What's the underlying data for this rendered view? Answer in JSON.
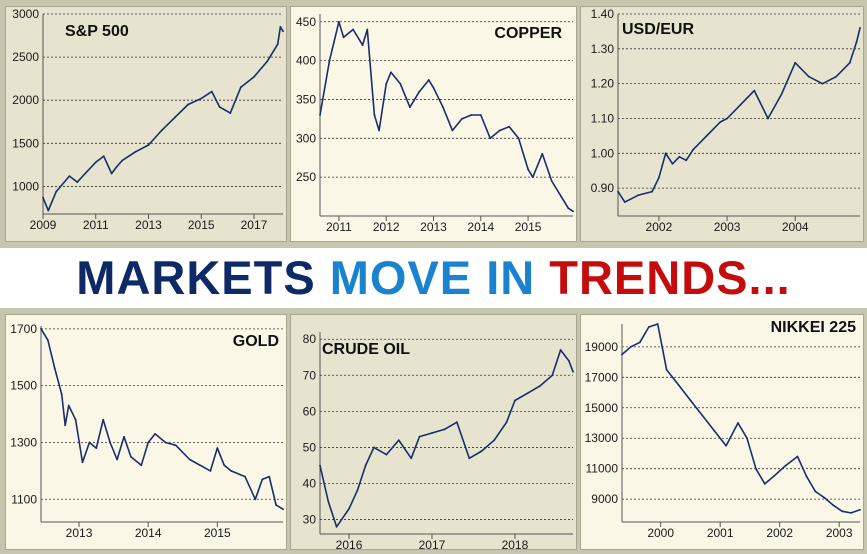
{
  "headline": {
    "word1": "MARKETS",
    "word2": "MOVE IN",
    "word3": "TRENDS..."
  },
  "colors": {
    "frame": "#c8c5ae",
    "panel_light": "#fbf7e6",
    "panel_dark": "#e6e3cf",
    "line": "#1a2d6b",
    "word1": "#0d2a66",
    "word2": "#1a83cf",
    "word3": "#c40c0c"
  },
  "chart_data": [
    {
      "type": "line",
      "title": "S&P 500",
      "x_ticks": [
        "2009",
        "2011",
        "2013",
        "2015",
        "2017"
      ],
      "xlim": [
        2009,
        2018.1
      ],
      "y_ticks": [
        "3000",
        "2500",
        "2000",
        "1500",
        "1000"
      ],
      "ylim": [
        680,
        3000
      ],
      "y_axis": "left",
      "grid": true,
      "series": [
        {
          "x": [
            2009.0,
            2009.2,
            2009.5,
            2010.0,
            2010.3,
            2010.6,
            2011.0,
            2011.3,
            2011.6,
            2011.8,
            2012.0,
            2012.5,
            2013.0,
            2013.5,
            2014.0,
            2014.5,
            2015.0,
            2015.4,
            2015.7,
            2016.1,
            2016.5,
            2017.0,
            2017.5,
            2017.9,
            2018.0,
            2018.1
          ],
          "y": [
            870,
            720,
            940,
            1120,
            1050,
            1150,
            1280,
            1350,
            1150,
            1230,
            1300,
            1400,
            1480,
            1650,
            1800,
            1950,
            2020,
            2100,
            1920,
            1850,
            2150,
            2270,
            2450,
            2650,
            2850,
            2800
          ]
        }
      ]
    },
    {
      "type": "line",
      "title": "COPPER",
      "x_ticks": [
        "2011",
        "2012",
        "2013",
        "2014",
        "2015"
      ],
      "xlim": [
        2010.6,
        2015.95
      ],
      "y_ticks": [
        "450",
        "400",
        "350",
        "300",
        "250"
      ],
      "ylim": [
        200,
        460
      ],
      "y_axis": "left",
      "grid": true,
      "series": [
        {
          "x": [
            2010.6,
            2010.8,
            2011.0,
            2011.1,
            2011.3,
            2011.5,
            2011.6,
            2011.75,
            2011.85,
            2012.0,
            2012.1,
            2012.3,
            2012.5,
            2012.7,
            2012.9,
            2013.0,
            2013.2,
            2013.4,
            2013.6,
            2013.8,
            2014.0,
            2014.2,
            2014.4,
            2014.6,
            2014.8,
            2015.0,
            2015.1,
            2015.3,
            2015.5,
            2015.7,
            2015.85,
            2015.95
          ],
          "y": [
            330,
            400,
            450,
            430,
            440,
            420,
            440,
            330,
            310,
            370,
            385,
            370,
            340,
            360,
            375,
            365,
            340,
            310,
            325,
            330,
            330,
            300,
            310,
            315,
            300,
            260,
            250,
            280,
            245,
            225,
            210,
            206
          ]
        }
      ]
    },
    {
      "type": "line",
      "title": "USD/EUR",
      "x_ticks": [
        "2002",
        "2003",
        "2004"
      ],
      "xlim": [
        2001.4,
        2004.95
      ],
      "y_ticks": [
        "1.40",
        "1.30",
        "1.20",
        "1.10",
        "1.00",
        "0.90"
      ],
      "ylim": [
        0.82,
        1.4
      ],
      "y_axis": "left",
      "grid": true,
      "series": [
        {
          "x": [
            2001.4,
            2001.5,
            2001.7,
            2001.9,
            2002.0,
            2002.1,
            2002.2,
            2002.3,
            2002.4,
            2002.5,
            2002.7,
            2002.9,
            2003.0,
            2003.2,
            2003.4,
            2003.6,
            2003.8,
            2004.0,
            2004.2,
            2004.4,
            2004.6,
            2004.8,
            2004.9,
            2004.95
          ],
          "y": [
            0.89,
            0.86,
            0.88,
            0.89,
            0.93,
            1.0,
            0.97,
            0.99,
            0.98,
            1.01,
            1.05,
            1.09,
            1.1,
            1.14,
            1.18,
            1.1,
            1.17,
            1.26,
            1.22,
            1.2,
            1.22,
            1.26,
            1.32,
            1.36
          ]
        }
      ]
    },
    {
      "type": "line",
      "title": "GOLD",
      "x_ticks": [
        "2013",
        "2014",
        "2015"
      ],
      "xlim": [
        2012.45,
        2015.95
      ],
      "y_ticks": [
        "1700",
        "1500",
        "1300",
        "1100"
      ],
      "ylim": [
        1020,
        1710
      ],
      "y_axis": "left",
      "grid": true,
      "series": [
        {
          "x": [
            2012.45,
            2012.55,
            2012.65,
            2012.75,
            2012.8,
            2012.85,
            2012.95,
            2013.05,
            2013.15,
            2013.25,
            2013.35,
            2013.45,
            2013.55,
            2013.65,
            2013.75,
            2013.9,
            2014.0,
            2014.1,
            2014.25,
            2014.4,
            2014.6,
            2014.75,
            2014.9,
            2015.0,
            2015.1,
            2015.2,
            2015.4,
            2015.55,
            2015.65,
            2015.75,
            2015.85,
            2015.95
          ],
          "y": [
            1700,
            1660,
            1560,
            1470,
            1360,
            1430,
            1380,
            1230,
            1300,
            1280,
            1380,
            1300,
            1240,
            1320,
            1250,
            1220,
            1300,
            1330,
            1300,
            1290,
            1240,
            1220,
            1200,
            1280,
            1220,
            1200,
            1180,
            1100,
            1170,
            1180,
            1080,
            1065
          ]
        }
      ]
    },
    {
      "type": "line",
      "title": "CRUDE OIL",
      "x_ticks": [
        "2016",
        "2017",
        "2018"
      ],
      "xlim": [
        2015.65,
        2018.7
      ],
      "y_ticks": [
        "80",
        "70",
        "60",
        "50",
        "40",
        "30"
      ],
      "ylim": [
        26,
        82
      ],
      "y_axis": "left",
      "grid": true,
      "series": [
        {
          "x": [
            2015.65,
            2015.75,
            2015.85,
            2016.0,
            2016.1,
            2016.2,
            2016.3,
            2016.45,
            2016.6,
            2016.75,
            2016.85,
            2017.0,
            2017.15,
            2017.3,
            2017.45,
            2017.6,
            2017.75,
            2017.9,
            2018.0,
            2018.15,
            2018.3,
            2018.45,
            2018.55,
            2018.65,
            2018.7
          ],
          "y": [
            45,
            35,
            28,
            33,
            38,
            45,
            50,
            48,
            52,
            47,
            53,
            54,
            55,
            57,
            47,
            49,
            52,
            57,
            63,
            65,
            67,
            70,
            77,
            74,
            71
          ]
        }
      ]
    },
    {
      "type": "line",
      "title": "NIKKEI 225",
      "x_ticks": [
        "2000",
        "2001",
        "2002",
        "2003"
      ],
      "xlim": [
        1999.35,
        2003.35
      ],
      "y_ticks": [
        "19000",
        "17000",
        "15000",
        "13000",
        "11000",
        "9000"
      ],
      "ylim": [
        7500,
        20500
      ],
      "y_axis": "left",
      "grid": true,
      "series": [
        {
          "x": [
            1999.35,
            1999.5,
            1999.65,
            1999.8,
            1999.95,
            2000.1,
            2000.3,
            2000.5,
            2000.7,
            2000.9,
            2001.1,
            2001.3,
            2001.45,
            2001.6,
            2001.75,
            2001.9,
            2002.1,
            2002.3,
            2002.45,
            2002.6,
            2002.75,
            2002.9,
            2003.05,
            2003.2,
            2003.35
          ],
          "y": [
            18500,
            19000,
            19300,
            20300,
            20500,
            17500,
            16500,
            15500,
            14500,
            13500,
            12500,
            14000,
            13000,
            11000,
            10000,
            10500,
            11200,
            11800,
            10500,
            9500,
            9100,
            8600,
            8200,
            8100,
            8300
          ]
        }
      ]
    }
  ]
}
